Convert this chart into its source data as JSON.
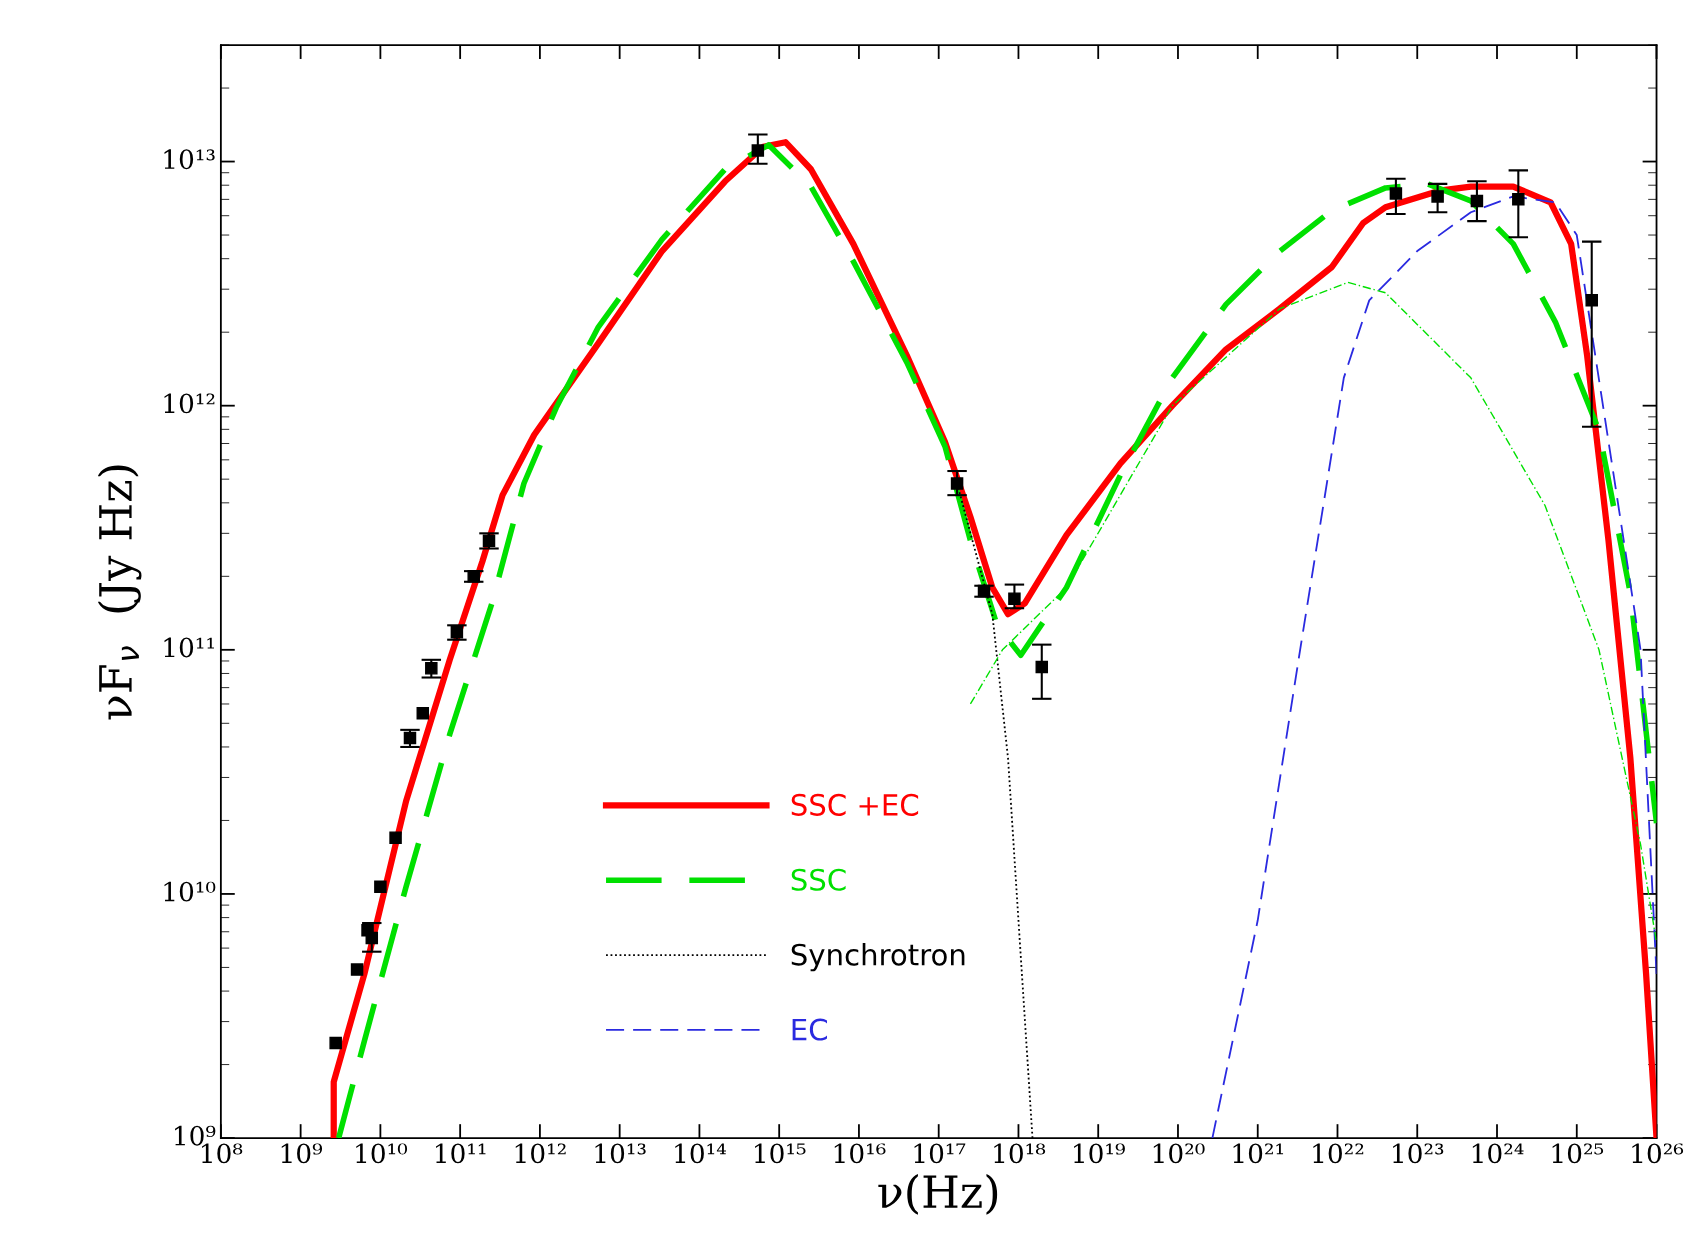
{
  "chart_data": {
    "type": "line",
    "xlabel": "ν(Hz)",
    "ylabel": "νF$_{ν}$  (Jy Hz)",
    "log": "xy",
    "legend": "bottom left",
    "grid": false,
    "xlim": [
      100000000.0,
      1e+26
    ],
    "ylim": [
      1000000000.0,
      30000000000000.0
    ],
    "xticks": [
      {
        "value": 100000000.0,
        "label": "10⁸"
      },
      {
        "value": 1000000000.0,
        "label": "10⁹"
      },
      {
        "value": 10000000000.0,
        "label": "10¹⁰"
      },
      {
        "value": 100000000000.0,
        "label": "10¹¹"
      },
      {
        "value": 1000000000000.0,
        "label": "10¹²"
      },
      {
        "value": 10000000000000.0,
        "label": "10¹³"
      },
      {
        "value": 100000000000000.0,
        "label": "10¹⁴"
      },
      {
        "value": 1000000000000000.0,
        "label": "10¹⁵"
      },
      {
        "value": 1e+16,
        "label": "10¹⁶"
      },
      {
        "value": 1e+17,
        "label": "10¹⁷"
      },
      {
        "value": 1e+18,
        "label": "10¹⁸"
      },
      {
        "value": 1e+19,
        "label": "10¹⁹"
      },
      {
        "value": 1e+20,
        "label": "10²⁰"
      },
      {
        "value": 1e+21,
        "label": "10²¹"
      },
      {
        "value": 1e+22,
        "label": "10²²"
      },
      {
        "value": 1e+23,
        "label": "10²³"
      },
      {
        "value": 1e+24,
        "label": "10²⁴"
      },
      {
        "value": 1e+25,
        "label": "10²⁵"
      },
      {
        "value": 1e+26,
        "label": "10²⁶"
      }
    ],
    "yticks": [
      {
        "value": 1000000000.0,
        "label": "10⁹"
      },
      {
        "value": 10000000000.0,
        "label": "10¹⁰"
      },
      {
        "value": 100000000000.0,
        "label": "10¹¹"
      },
      {
        "value": 1000000000000.0,
        "label": "10¹²"
      },
      {
        "value": 10000000000000.0,
        "label": "10¹³"
      }
    ],
    "series": [
      {
        "name": "SSC +EC",
        "type": "line",
        "color": "#ff0000",
        "line_style": "solid",
        "x": [
          2600000000.0,
          2600000000.0,
          6300000000.0,
          21000000000.0,
          74000000000.0,
          190000000000.0,
          340000000000.0,
          850000000000.0,
          5400000000000.0,
          34000000000000.0,
          210000000000000.0,
          630000000000000.0,
          1200000000000000.0,
          2500000000000000.0,
          8500000000000000.0,
          4e+16,
          1.2e+17,
          2.5e+17,
          4.7e+17,
          7.4e+17,
          1.2e+18,
          4e+18,
          1.9e+19,
          8.5e+19,
          4e+20,
          1.9e+21,
          8.5e+21,
          2.1e+22,
          4e+22,
          1.9e+23,
          4.7e+23,
          1.6e+24,
          4.7e+24,
          8.5e+24,
          1.35e+25,
          2.5e+25,
          4.7e+25,
          7.4e+25,
          1e+26
        ],
        "values": [
          1000000000.0,
          1700000000.0,
          4700000000.0,
          24000000000.0,
          91000000000.0,
          230000000000.0,
          430000000000.0,
          760000000000.0,
          1800000000000.0,
          4300000000000.0,
          8300000000000.0,
          11500000000000.0,
          12000000000000.0,
          9300000000000.0,
          4600000000000.0,
          1600000000000.0,
          710000000000.0,
          350000000000.0,
          180000000000.0,
          140000000000.0,
          155000000000.0,
          295000000000.0,
          580000000000.0,
          1000000000000.0,
          1700000000000.0,
          2500000000000.0,
          3700000000000.0,
          5600000000000.0,
          6500000000000.0,
          7600000000000.0,
          7900000000000.0,
          7900000000000.0,
          6800000000000.0,
          4600000000000.0,
          1600000000000.0,
          280000000000.0,
          36000000000.0,
          4700000000.0,
          1000000000.0
        ]
      },
      {
        "name": "SSC",
        "type": "line",
        "color": "#00e000",
        "line_style": "dashed",
        "x": [
          3000000000.0,
          6300000000.0,
          21000000000.0,
          74000000000.0,
          250000000000.0,
          630000000000.0,
          1600000000000.0,
          5400000000000.0,
          34000000000000.0,
          210000000000000.0,
          740000000000000.0,
          2500000000000000.0,
          8500000000000000.0,
          4e+16,
          1.2e+17,
          2.5e+17,
          5.4e+17,
          1.07e+18,
          4e+18,
          1.9e+19,
          8.5e+19,
          4e+20,
          1.9e+21,
          8.5e+21,
          4e+22,
          1.35e+23,
          4.7e+23,
          1.6e+24,
          5.4e+24,
          1.9e+25,
          4.7e+25,
          1e+26
        ],
        "values": [
          1000000000.0,
          2500000000.0,
          10700000000.0,
          45000000000.0,
          155000000000.0,
          480000000000.0,
          980000000000.0,
          2100000000000.0,
          4800000000000.0,
          9300000000000.0,
          11700000000000.0,
          7900000000000.0,
          3900000000000.0,
          1500000000000.0,
          680000000000.0,
          280000000000.0,
          126000000000.0,
          95000000000.0,
          180000000000.0,
          520000000000.0,
          1300000000000.0,
          2600000000000.0,
          4300000000000.0,
          6300000000000.0,
          7800000000000.0,
          8100000000000.0,
          6900000000000.0,
          4600000000000.0,
          2200000000000.0,
          790000000000.0,
          170000000000.0,
          19500000000.0
        ]
      },
      {
        "name": "Synchrotron",
        "type": "line",
        "color": "#000000",
        "line_style": "dotted",
        "x": [
          1.7e+17,
          4.7e+17,
          7.4e+17,
          1e+18,
          1.5e+18
        ],
        "values": [
          480000000000.0,
          140000000000.0,
          36000000000.0,
          7800000000.0,
          1000000000.0
        ]
      },
      {
        "name": "EC",
        "type": "line",
        "color": "#2a2ae0",
        "line_style": "dashed",
        "x": [
          2.7e+20,
          1e+21,
          3.4e+21,
          1.2e+22,
          2.5e+22,
          1e+23,
          4.7e+23,
          1.6e+24,
          5.4e+24,
          1e+25,
          6.3e+25,
          1e+26
        ],
        "values": [
          1000000000.0,
          7800000000.0,
          100000000000.0,
          1300000000000.0,
          2700000000000.0,
          4300000000000.0,
          6200000000000.0,
          7200000000000.0,
          6800000000000.0,
          5000000000000.0,
          100000000000.0,
          4700000000.0
        ]
      },
      {
        "type": "line",
        "color": "#00e000",
        "line_style": "dashdot",
        "x": [
          2.5e+17,
          6.3e+17,
          4e+18,
          8.5e+19,
          1.9e+21,
          1.35e+22,
          4e+22,
          4.7e+23,
          4e+24,
          1.9e+25,
          6.3e+25,
          1e+26
        ],
        "values": [
          60000000000.0,
          100000000000.0,
          180000000000.0,
          1000000000000.0,
          2500000000000.0,
          3200000000000.0,
          2900000000000.0,
          1300000000000.0,
          390000000000.0,
          100000000000.0,
          16000000000.0,
          6300000000.0
        ]
      },
      {
        "type": "scatter",
        "color": "#000000",
        "marker": "square",
        "x": [
          2750000000.0,
          5100000000.0,
          6900000000.0,
          7800000000.0,
          10000000000.0,
          15500000000.0,
          23500000000.0,
          34000000000.0,
          43500000000.0,
          91000000000.0,
          148000000000.0,
          230000000000.0,
          540000000000000.0,
          1.7e+17,
          3.7e+17,
          8.9e+17,
          1.96e+18,
          5.4e+22,
          1.8e+23,
          5.6e+23,
          1.85e+24,
          1.54e+25
        ],
        "values": [
          2450000000.0,
          4900000000.0,
          7100000000.0,
          6600000000.0,
          10700000000.0,
          17000000000.0,
          43500000000.0,
          55000000000.0,
          84000000000.0,
          118000000000.0,
          200000000000.0,
          280000000000.0,
          11100000000000.0,
          480000000000.0,
          174000000000.0,
          162000000000.0,
          85000000000.0,
          7400000000000.0,
          7200000000000.0,
          6900000000000.0,
          7000000000000.0,
          2700000000000.0
        ],
        "errors": [
          null,
          null,
          null,
          [
            5800000000.0,
            7600000000.0
          ],
          null,
          null,
          [
            40000000000.0,
            47000000000.0
          ],
          null,
          [
            77000000000.0,
            91000000000.0
          ],
          [
            110000000000.0,
            126000000000.0
          ],
          [
            190000000000.0,
            210000000000.0
          ],
          [
            260000000000.0,
            300000000000.0
          ],
          [
            9800000000000.0,
            12900000000000.0
          ],
          [
            430000000000.0,
            540000000000.0
          ],
          [
            165000000000.0,
            183000000000.0
          ],
          [
            148000000000.0,
            185000000000.0
          ],
          [
            63000000000.0,
            105000000000.0
          ],
          [
            6100000000000.0,
            8500000000000.0
          ],
          [
            6200000000000.0,
            8100000000000.0
          ],
          [
            5700000000000.0,
            8300000000000.0
          ],
          [
            4900000000000.0,
            9200000000000.0
          ],
          [
            820000000000.0,
            4700000000000.0
          ]
        ]
      }
    ]
  }
}
